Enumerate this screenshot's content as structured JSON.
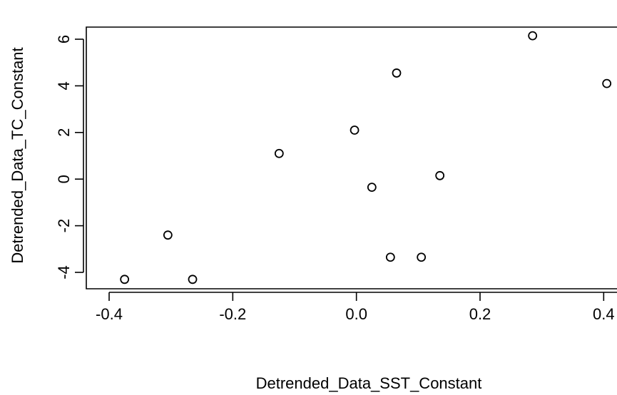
{
  "chart_data": {
    "type": "scatter",
    "title": "",
    "xlabel": "Detrended_Data_SST_Constant",
    "ylabel": "Detrended_Data_TC_Constant",
    "xlim": [
      -0.4,
      0.4
    ],
    "ylim": [
      -4,
      6
    ],
    "x_ticks": [
      -0.4,
      -0.2,
      0.0,
      0.2,
      0.4
    ],
    "x_tick_labels": [
      "-0.4",
      "-0.2",
      "0.0",
      "0.2",
      "0.4"
    ],
    "y_ticks": [
      -4,
      -2,
      0,
      2,
      4,
      6
    ],
    "y_tick_labels": [
      "-4",
      "-2",
      "0",
      "2",
      "4",
      "6"
    ],
    "grid": false,
    "legend": "none",
    "series": [
      {
        "points": [
          {
            "x": -0.375,
            "y": -4.3
          },
          {
            "x": -0.305,
            "y": -2.4
          },
          {
            "x": -0.265,
            "y": -4.3
          },
          {
            "x": -0.125,
            "y": 1.1
          },
          {
            "x": -0.003,
            "y": 2.1
          },
          {
            "x": 0.025,
            "y": -0.35
          },
          {
            "x": 0.055,
            "y": -3.35
          },
          {
            "x": 0.065,
            "y": 4.55
          },
          {
            "x": 0.105,
            "y": -3.35
          },
          {
            "x": 0.135,
            "y": 0.15
          },
          {
            "x": 0.285,
            "y": 6.15
          },
          {
            "x": 0.405,
            "y": 4.1
          }
        ]
      }
    ]
  }
}
